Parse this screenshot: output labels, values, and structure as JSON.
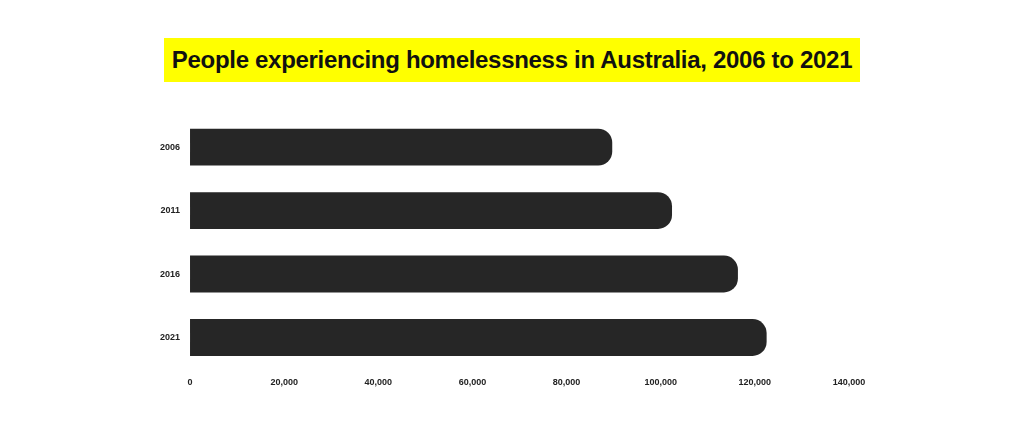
{
  "chart_data": {
    "type": "bar",
    "orientation": "horizontal",
    "title": "People experiencing homelessness in Australia, 2006 to 2021",
    "categories": [
      "2006",
      "2011",
      "2016",
      "2021"
    ],
    "values": [
      89700,
      102400,
      116400,
      122500
    ],
    "color": "#262626",
    "xlim": [
      0,
      140000
    ],
    "xticks": [
      0,
      {
        "value": 20000,
        "label": "20,000"
      },
      {
        "value": 40000,
        "label": "40,000"
      },
      {
        "value": 60000,
        "label": "60,000"
      },
      {
        "value": 80000,
        "label": "80,000"
      },
      {
        "value": 100000,
        "label": "100,000"
      },
      {
        "value": 120000,
        "label": "120,000"
      },
      {
        "value": 140000,
        "label": "140,000"
      }
    ],
    "grid": false
  }
}
